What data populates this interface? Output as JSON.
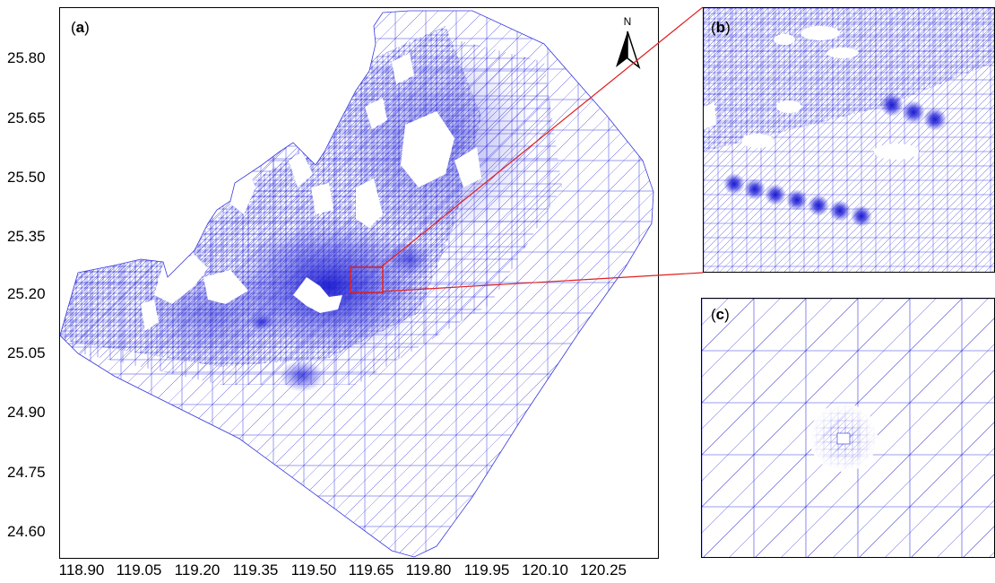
{
  "panels": {
    "a": {
      "label_open": "(",
      "label_letter": "a",
      "label_close": ")"
    },
    "b": {
      "label_open": "(",
      "label_letter": "b",
      "label_close": ")"
    },
    "c": {
      "label_open": "(",
      "label_letter": "c",
      "label_close": ")"
    }
  },
  "north_arrow": {
    "label": "N"
  },
  "axes": {
    "y_ticks": [
      "25.80",
      "25.65",
      "25.50",
      "25.35",
      "25.20",
      "25.05",
      "24.90",
      "24.75",
      "24.60"
    ],
    "x_ticks": [
      "118.90",
      "119.05",
      "119.20",
      "119.35",
      "119.50",
      "119.65",
      "119.80",
      "119.95",
      "120.10",
      "120.25"
    ]
  },
  "colors": {
    "mesh": "#2b2bdc",
    "mesh_light": "#8a8af0",
    "zoom_box": "#e02020",
    "axis": "#000000"
  }
}
